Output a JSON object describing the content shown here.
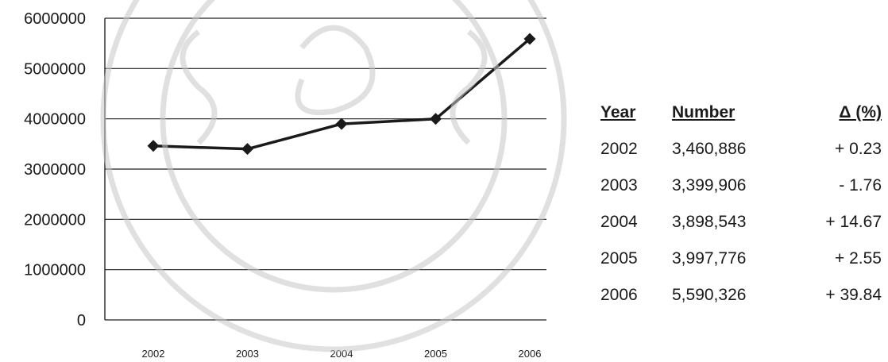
{
  "chart_data": {
    "type": "line",
    "categories": [
      "2002",
      "2003",
      "2004",
      "2005",
      "2006"
    ],
    "series": [
      {
        "values": [
          3460886,
          3399906,
          3898543,
          3997776,
          5590326
        ],
        "color": "#1a1a1a",
        "marker": "diamond"
      }
    ],
    "ylim": [
      0,
      6000000
    ],
    "yticks": [
      "0",
      "1000000",
      "2000000",
      "3000000",
      "4000000",
      "5000000",
      "6000000"
    ],
    "grid": true,
    "title": "",
    "xlabel": "",
    "ylabel": ""
  },
  "table": {
    "headers": {
      "year": "Year",
      "number": "Number",
      "delta": "Δ (%)"
    },
    "rows": [
      {
        "year": "2002",
        "number": "3,460,886",
        "delta": "+ 0.23"
      },
      {
        "year": "2003",
        "number": "3,399,906",
        "delta": "- 1.76"
      },
      {
        "year": "2004",
        "number": "3,898,543",
        "delta": "+ 14.67"
      },
      {
        "year": "2005",
        "number": "3,997,776",
        "delta": "+ 2.55"
      },
      {
        "year": "2006",
        "number": "5,590,326",
        "delta": "+ 39.84"
      }
    ]
  },
  "watermark": {
    "color": "#c8c8c8",
    "type": "university-seal"
  }
}
